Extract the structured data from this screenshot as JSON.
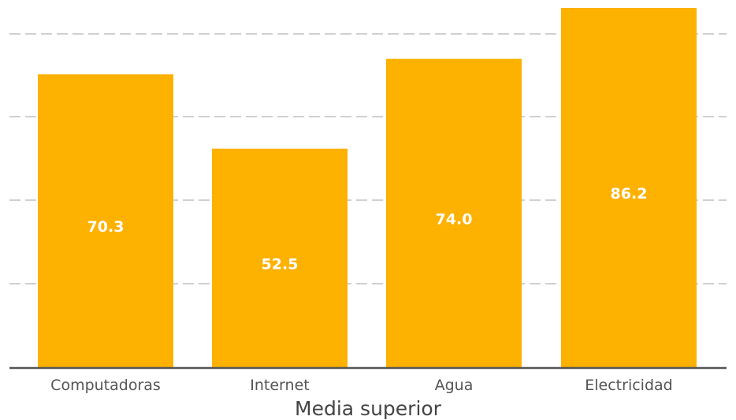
{
  "chart_data": {
    "type": "bar",
    "categories": [
      "Computadoras",
      "Internet",
      "Agua",
      "Electricidad"
    ],
    "values": [
      70.3,
      52.5,
      74.0,
      86.2
    ],
    "value_labels": [
      "70.3",
      "52.5",
      "74.0",
      "86.2"
    ],
    "title": "",
    "xlabel": "Media superior",
    "ylabel": "",
    "ylim": [
      0,
      86.2
    ],
    "grid": true,
    "legend": "none",
    "colors": {
      "bar": "#FDB100",
      "value_label": "#FFFFFF",
      "axis": "#555555",
      "grid": "#D0D0D0"
    }
  }
}
